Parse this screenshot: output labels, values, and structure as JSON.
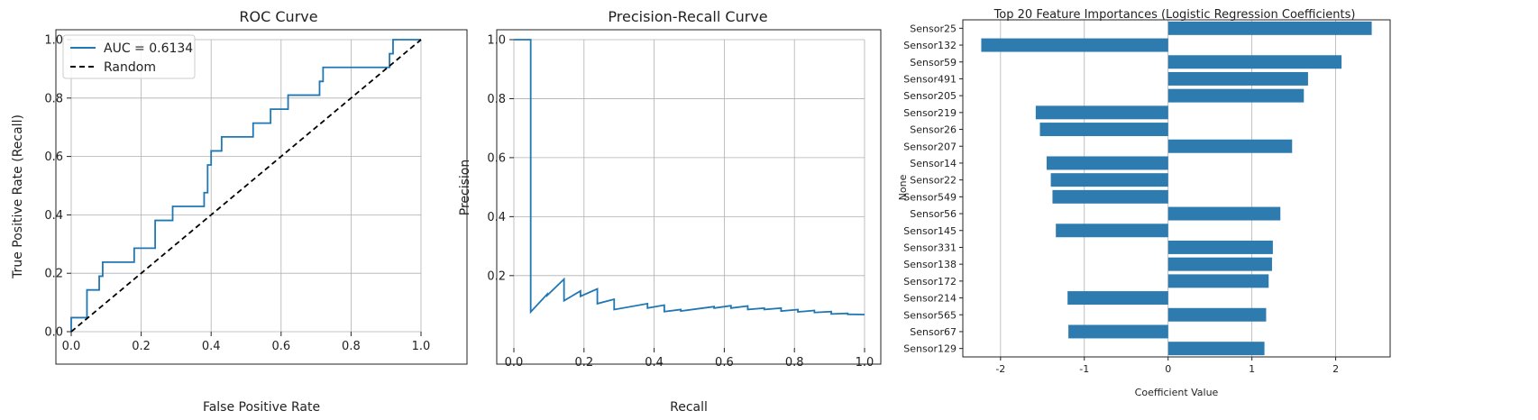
{
  "chart_data": [
    {
      "type": "line",
      "title": "ROC Curve",
      "xlabel": "False Positive Rate",
      "ylabel": "True Positive Rate (Recall)",
      "xlim": [
        0,
        1
      ],
      "ylim": [
        0,
        1
      ],
      "xticks": [
        "0.0",
        "0.2",
        "0.4",
        "0.6",
        "0.8",
        "1.0"
      ],
      "yticks": [
        "0.0",
        "0.2",
        "0.4",
        "0.6",
        "0.8",
        "1.0"
      ],
      "grid": true,
      "legend": "top-left",
      "series": [
        {
          "name": "AUC = 0.6134",
          "color": "#1f77b4",
          "style": "solid",
          "points": [
            [
              0,
              0
            ],
            [
              0,
              0.048
            ],
            [
              0.045,
              0.048
            ],
            [
              0.045,
              0.143
            ],
            [
              0.08,
              0.143
            ],
            [
              0.08,
              0.19
            ],
            [
              0.09,
              0.19
            ],
            [
              0.09,
              0.238
            ],
            [
              0.18,
              0.238
            ],
            [
              0.18,
              0.286
            ],
            [
              0.24,
              0.286
            ],
            [
              0.24,
              0.381
            ],
            [
              0.29,
              0.381
            ],
            [
              0.29,
              0.429
            ],
            [
              0.38,
              0.429
            ],
            [
              0.38,
              0.476
            ],
            [
              0.39,
              0.476
            ],
            [
              0.39,
              0.571
            ],
            [
              0.4,
              0.571
            ],
            [
              0.4,
              0.619
            ],
            [
              0.43,
              0.619
            ],
            [
              0.43,
              0.667
            ],
            [
              0.52,
              0.667
            ],
            [
              0.52,
              0.714
            ],
            [
              0.57,
              0.714
            ],
            [
              0.57,
              0.762
            ],
            [
              0.62,
              0.762
            ],
            [
              0.62,
              0.81
            ],
            [
              0.71,
              0.81
            ],
            [
              0.71,
              0.857
            ],
            [
              0.72,
              0.857
            ],
            [
              0.72,
              0.905
            ],
            [
              0.91,
              0.905
            ],
            [
              0.91,
              0.952
            ],
            [
              0.92,
              0.952
            ],
            [
              0.92,
              1.0
            ],
            [
              1.0,
              1.0
            ]
          ]
        },
        {
          "name": "Random",
          "color": "#000000",
          "style": "dashed",
          "points": [
            [
              0,
              0
            ],
            [
              1,
              1
            ]
          ]
        }
      ]
    },
    {
      "type": "line",
      "title": "Precision-Recall Curve",
      "xlabel": "Recall",
      "ylabel": "Precision",
      "xlim": [
        0,
        1
      ],
      "ylim": [
        0,
        1
      ],
      "xticks": [
        "0.0",
        "0.2",
        "0.4",
        "0.6",
        "0.8",
        "1.0"
      ],
      "yticks": [
        "0.2",
        "0.4",
        "0.6",
        "0.8",
        "1.0"
      ],
      "grid": true,
      "series": [
        {
          "color": "#1f77b4",
          "style": "solid",
          "points": [
            [
              0,
              1.0
            ],
            [
              0.048,
              1.0
            ],
            [
              0.048,
              0.077
            ],
            [
              0.095,
              0.137
            ],
            [
              0.095,
              0.133
            ],
            [
              0.143,
              0.188
            ],
            [
              0.143,
              0.115
            ],
            [
              0.19,
              0.148
            ],
            [
              0.19,
              0.13
            ],
            [
              0.238,
              0.155
            ],
            [
              0.238,
              0.105
            ],
            [
              0.286,
              0.12
            ],
            [
              0.286,
              0.085
            ],
            [
              0.381,
              0.105
            ],
            [
              0.381,
              0.09
            ],
            [
              0.429,
              0.1
            ],
            [
              0.429,
              0.078
            ],
            [
              0.476,
              0.085
            ],
            [
              0.476,
              0.08
            ],
            [
              0.571,
              0.095
            ],
            [
              0.571,
              0.09
            ],
            [
              0.619,
              0.098
            ],
            [
              0.619,
              0.09
            ],
            [
              0.667,
              0.097
            ],
            [
              0.667,
              0.085
            ],
            [
              0.714,
              0.09
            ],
            [
              0.714,
              0.085
            ],
            [
              0.762,
              0.09
            ],
            [
              0.762,
              0.08
            ],
            [
              0.81,
              0.085
            ],
            [
              0.81,
              0.077
            ],
            [
              0.857,
              0.082
            ],
            [
              0.857,
              0.075
            ],
            [
              0.905,
              0.078
            ],
            [
              0.905,
              0.07
            ],
            [
              0.952,
              0.072
            ],
            [
              0.952,
              0.069
            ],
            [
              1.0,
              0.068
            ]
          ]
        }
      ]
    },
    {
      "type": "bar",
      "orientation": "horizontal",
      "title": "Top 20 Feature Importances (Logistic Regression Coefficients)",
      "xlabel": "Coefficient Value",
      "ylabel": "None",
      "xlim": [
        -2.45,
        2.65
      ],
      "xticks": [
        -2,
        -1,
        0,
        1,
        2
      ],
      "color": "#2e7bb0",
      "categories": [
        "Sensor25",
        "Sensor132",
        "Sensor59",
        "Sensor491",
        "Sensor205",
        "Sensor219",
        "Sensor26",
        "Sensor207",
        "Sensor14",
        "Sensor22",
        "Sensor549",
        "Sensor56",
        "Sensor145",
        "Sensor331",
        "Sensor138",
        "Sensor172",
        "Sensor214",
        "Sensor565",
        "Sensor67",
        "Sensor129"
      ],
      "values": [
        2.43,
        -2.23,
        2.07,
        1.67,
        1.62,
        -1.58,
        -1.53,
        1.48,
        -1.45,
        -1.4,
        -1.38,
        1.34,
        -1.34,
        1.25,
        1.24,
        1.2,
        -1.2,
        1.17,
        -1.19,
        1.15
      ]
    }
  ]
}
